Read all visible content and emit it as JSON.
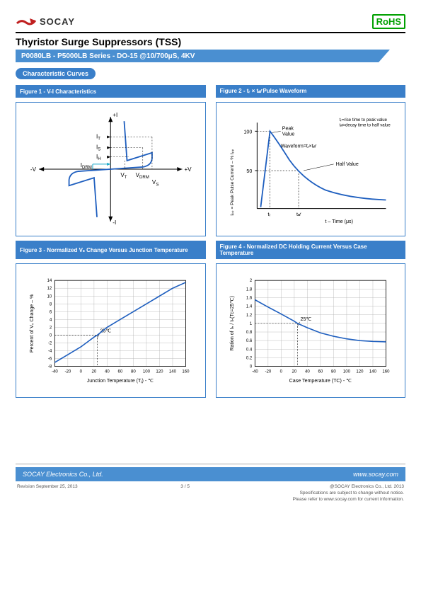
{
  "header": {
    "logo_text": "SOCAY",
    "compliance": "RoHS",
    "logo_color": "#c02020"
  },
  "document": {
    "title": "Thyristor Surge Suppressors (TSS)",
    "series_line": "P0080LB - P5000LB Series - DO-15      @10/700μS, 4KV",
    "section": "Characteristic Curves"
  },
  "figures": {
    "fig1": {
      "title": "Figure 1 - V-I Characteristics",
      "labels": {
        "pos_i": "+I",
        "neg_i": "-I",
        "pos_v": "+V",
        "neg_v": "-V",
        "it": "I",
        "it_sub": "T",
        "is": "I",
        "is_sub": "S",
        "ih": "I",
        "ih_sub": "H",
        "idrm": "I",
        "idrm_sub": "DRM",
        "vt": "V",
        "vt_sub": "T",
        "vdrm": "V",
        "vdrm_sub": "DRM",
        "vs": "V",
        "vs_sub": "S"
      },
      "line_color": "#1f5fbf",
      "accent_color": "#18a8c8"
    },
    "fig2": {
      "title": "Figure 2 - tᵣ × t𝒹 Pulse Waveform",
      "ylabel": "Iₚₚ = Peak Pulse Current – % Iₚₚ",
      "xlabel": "t – Time (μs)",
      "annotations": {
        "peak": "Peak\nValue",
        "wf": "Waveform=tᵣ×t𝒹",
        "half": "Half Value",
        "note": "tᵣ=rise time to peak value\nt𝒹=decay time to half value",
        "tr": "tᵣ",
        "td": "t𝒹"
      },
      "yticks": [
        "50",
        "100"
      ],
      "line_color": "#1f5fbf",
      "grid_color": "#b0b0b0"
    },
    "fig3": {
      "title": "Figure 3 - Normalized Vₛ Change Versus Junction Temperature",
      "ylabel": "Percent of Vₛ Change – %",
      "xlabel": "Junction Temperature (Tⱼ) - ℃",
      "xlim": [
        -40,
        160
      ],
      "xtick_step": 20,
      "ylim": [
        -8,
        14
      ],
      "ytick_step": 2,
      "ref_label": "25℃",
      "data": [
        [
          -40,
          -7
        ],
        [
          -20,
          -5
        ],
        [
          0,
          -3
        ],
        [
          20,
          -0.5
        ],
        [
          25,
          0
        ],
        [
          40,
          2
        ],
        [
          60,
          4
        ],
        [
          80,
          6
        ],
        [
          100,
          8
        ],
        [
          120,
          10
        ],
        [
          140,
          12
        ],
        [
          160,
          13.5
        ]
      ],
      "line_color": "#1f5fbf",
      "grid_color": "#b0b0b0"
    },
    "fig4": {
      "title": "Figure 4 - Normalized DC Holding Current Versus Case Temperature",
      "ylabel": "Ration of   Iₕ / Iₕ(Tc=25℃)",
      "xlabel": "Case Temperature (TC) - ℃",
      "xlim": [
        -40,
        160
      ],
      "xtick_step": 20,
      "ylim": [
        0,
        2.0
      ],
      "ytick_step": 0.2,
      "ref_label": "25℃",
      "data": [
        [
          -40,
          1.55
        ],
        [
          -20,
          1.38
        ],
        [
          0,
          1.22
        ],
        [
          20,
          1.05
        ],
        [
          25,
          1.0
        ],
        [
          40,
          0.9
        ],
        [
          60,
          0.78
        ],
        [
          80,
          0.7
        ],
        [
          100,
          0.64
        ],
        [
          120,
          0.6
        ],
        [
          140,
          0.58
        ],
        [
          160,
          0.57
        ]
      ],
      "line_color": "#1f5fbf",
      "grid_color": "#b0b0b0"
    }
  },
  "footer": {
    "company": "SOCAY Electronics Co., Ltd.",
    "url": "www.socay.com",
    "revision_label": "Revision",
    "revision_date": "September 25, 2013",
    "page": "3 / 5",
    "copyright": "@SOCAY Electronics Co., Ltd. 2013",
    "disclaimer1": "Specifications are subject to change without notice.",
    "disclaimer2": "Please refer to www.socay.com for current information."
  },
  "colors": {
    "brand_blue": "#4a8fd1",
    "dark_blue": "#3a7fc9",
    "text": "#333333"
  }
}
